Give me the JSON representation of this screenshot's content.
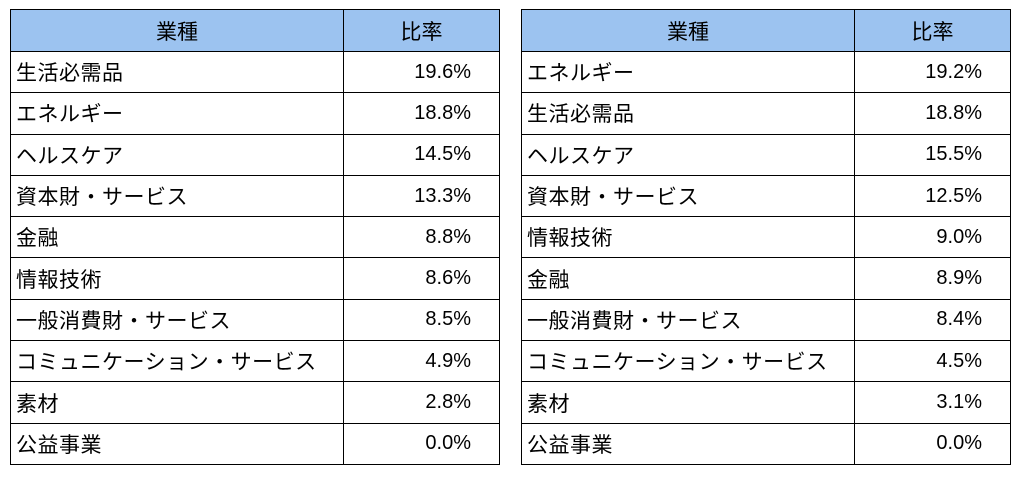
{
  "tables": [
    {
      "headers": {
        "name": "業種",
        "ratio": "比率"
      },
      "rows": [
        {
          "name": "生活必需品",
          "ratio": "19.6%"
        },
        {
          "name": "エネルギー",
          "ratio": "18.8%"
        },
        {
          "name": "ヘルスケア",
          "ratio": "14.5%"
        },
        {
          "name": "資本財・サービス",
          "ratio": "13.3%"
        },
        {
          "name": "金融",
          "ratio": "8.8%"
        },
        {
          "name": "情報技術",
          "ratio": "8.6%"
        },
        {
          "name": "一般消費財・サービス",
          "ratio": "8.5%"
        },
        {
          "name": "コミュニケーション・サービス",
          "ratio": "4.9%"
        },
        {
          "name": "素材",
          "ratio": "2.8%"
        },
        {
          "name": "公益事業",
          "ratio": "0.0%"
        }
      ]
    },
    {
      "headers": {
        "name": "業種",
        "ratio": "比率"
      },
      "rows": [
        {
          "name": "エネルギー",
          "ratio": "19.2%"
        },
        {
          "name": "生活必需品",
          "ratio": "18.8%"
        },
        {
          "name": "ヘルスケア",
          "ratio": "15.5%"
        },
        {
          "name": "資本財・サービス",
          "ratio": "12.5%"
        },
        {
          "name": "情報技術",
          "ratio": "9.0%"
        },
        {
          "name": "金融",
          "ratio": "8.9%"
        },
        {
          "name": "一般消費財・サービス",
          "ratio": "8.4%"
        },
        {
          "name": "コミュニケーション・サービス",
          "ratio": "4.5%"
        },
        {
          "name": "素材",
          "ratio": "3.1%"
        },
        {
          "name": "公益事業",
          "ratio": "0.0%"
        }
      ]
    }
  ],
  "colors": {
    "header_bg": "#9cc3f0",
    "border": "#000000"
  }
}
